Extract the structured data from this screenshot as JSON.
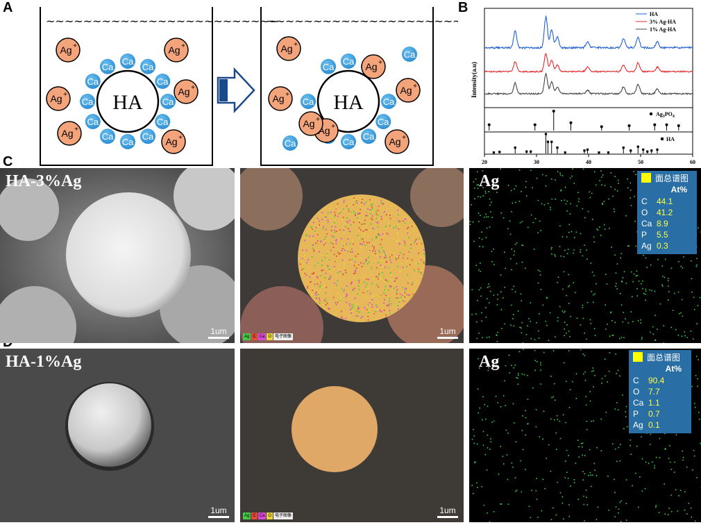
{
  "panels": {
    "A": "A",
    "B": "B",
    "C": "C",
    "D": "D"
  },
  "schematic": {
    "tilde": "~~~~~~~~~~~~~~~~~~~~~~~~~",
    "core": "HA",
    "ca": "Ca",
    "ag": "Ag",
    "ag_sup": "+",
    "colors": {
      "ag_fill": "#f4a47b",
      "ca_fill": "#3a9bd8"
    }
  },
  "xrd": {
    "ylabel": "Intensity(a.u)",
    "legend": [
      {
        "name": "HA",
        "color": "#1f5fd6"
      },
      {
        "name": "3% Ag-HA",
        "color": "#e8282b"
      },
      {
        "name": "1% Ag-HA",
        "color": "#444444"
      }
    ],
    "ref1_label_main": "Ag",
    "ref1_label_sub1": "3",
    "ref1_label_mid": "PO",
    "ref1_label_sub2": "4",
    "ref2_label": "HA",
    "xticks": [
      "20",
      "30",
      "40",
      "50",
      "60"
    ]
  },
  "chart_data": {
    "type": "line",
    "ylabel": "Intensity(a.u)",
    "xlim": [
      20,
      60
    ],
    "xticks": [
      20,
      30,
      40,
      50,
      60
    ],
    "series": [
      {
        "name": "HA",
        "peaks": [
          [
            25.9,
            0.55
          ],
          [
            31.8,
            1.0
          ],
          [
            32.9,
            0.6
          ],
          [
            34.0,
            0.35
          ],
          [
            39.8,
            0.2
          ],
          [
            46.7,
            0.3
          ],
          [
            49.5,
            0.35
          ],
          [
            53.2,
            0.2
          ]
        ]
      },
      {
        "name": "3% Ag-HA",
        "peaks": [
          [
            25.9,
            0.45
          ],
          [
            31.8,
            0.8
          ],
          [
            32.9,
            0.5
          ],
          [
            34.0,
            0.3
          ],
          [
            39.8,
            0.2
          ],
          [
            46.7,
            0.3
          ],
          [
            49.5,
            0.4
          ],
          [
            53.2,
            0.2
          ]
        ]
      },
      {
        "name": "1% Ag-HA",
        "peaks": [
          [
            25.9,
            0.45
          ],
          [
            31.8,
            0.85
          ],
          [
            32.9,
            0.5
          ],
          [
            34.0,
            0.3
          ],
          [
            39.8,
            0.15
          ],
          [
            46.7,
            0.3
          ],
          [
            49.5,
            0.4
          ],
          [
            53.2,
            0.2
          ]
        ]
      }
    ],
    "reference_Ag3PO4": [
      [
        20.9,
        0.3
      ],
      [
        29.7,
        0.3
      ],
      [
        33.3,
        1.0
      ],
      [
        36.6,
        0.4
      ],
      [
        42.5,
        0.2
      ],
      [
        47.8,
        0.25
      ],
      [
        52.7,
        0.3
      ],
      [
        55.0,
        0.3
      ],
      [
        57.3,
        0.25
      ]
    ],
    "reference_HA": [
      [
        21.8,
        0.05
      ],
      [
        22.9,
        0.08
      ],
      [
        25.9,
        0.3
      ],
      [
        28.1,
        0.1
      ],
      [
        28.9,
        0.1
      ],
      [
        31.8,
        1.0
      ],
      [
        32.2,
        0.6
      ],
      [
        32.9,
        0.6
      ],
      [
        34.0,
        0.3
      ],
      [
        35.5,
        0.05
      ],
      [
        39.2,
        0.15
      ],
      [
        39.8,
        0.2
      ],
      [
        42.0,
        0.05
      ],
      [
        43.8,
        0.05
      ],
      [
        46.7,
        0.3
      ],
      [
        48.1,
        0.15
      ],
      [
        49.5,
        0.35
      ],
      [
        50.5,
        0.2
      ],
      [
        51.3,
        0.1
      ],
      [
        52.1,
        0.15
      ],
      [
        53.2,
        0.2
      ]
    ]
  },
  "row_c": {
    "label": "HA-3%Ag",
    "ag_label": "Ag",
    "scale": "1um",
    "table": {
      "title": "面总谱图",
      "header": "At%",
      "rows": [
        {
          "el": "C",
          "val": "44.1"
        },
        {
          "el": "O",
          "val": "41.2"
        },
        {
          "el": "Ca",
          "val": "8.9"
        },
        {
          "el": "P",
          "val": "5.5"
        },
        {
          "el": "Ag",
          "val": "0.3"
        }
      ]
    },
    "legend_strip": [
      "Ag",
      "C",
      "Ca",
      "O",
      "电子图像"
    ]
  },
  "row_d": {
    "label": "HA-1%Ag",
    "ag_label": "Ag",
    "scale": "1um",
    "table": {
      "title": "面总谱图",
      "header": "At%",
      "rows": [
        {
          "el": "C",
          "val": "90.4"
        },
        {
          "el": "O",
          "val": "7.7"
        },
        {
          "el": "Ca",
          "val": "1.1"
        },
        {
          "el": "P",
          "val": "0.7"
        },
        {
          "el": "Ag",
          "val": "0.1"
        }
      ]
    },
    "legend_strip": [
      "Ag",
      "C",
      "Ca",
      "O",
      "电子图像"
    ]
  }
}
